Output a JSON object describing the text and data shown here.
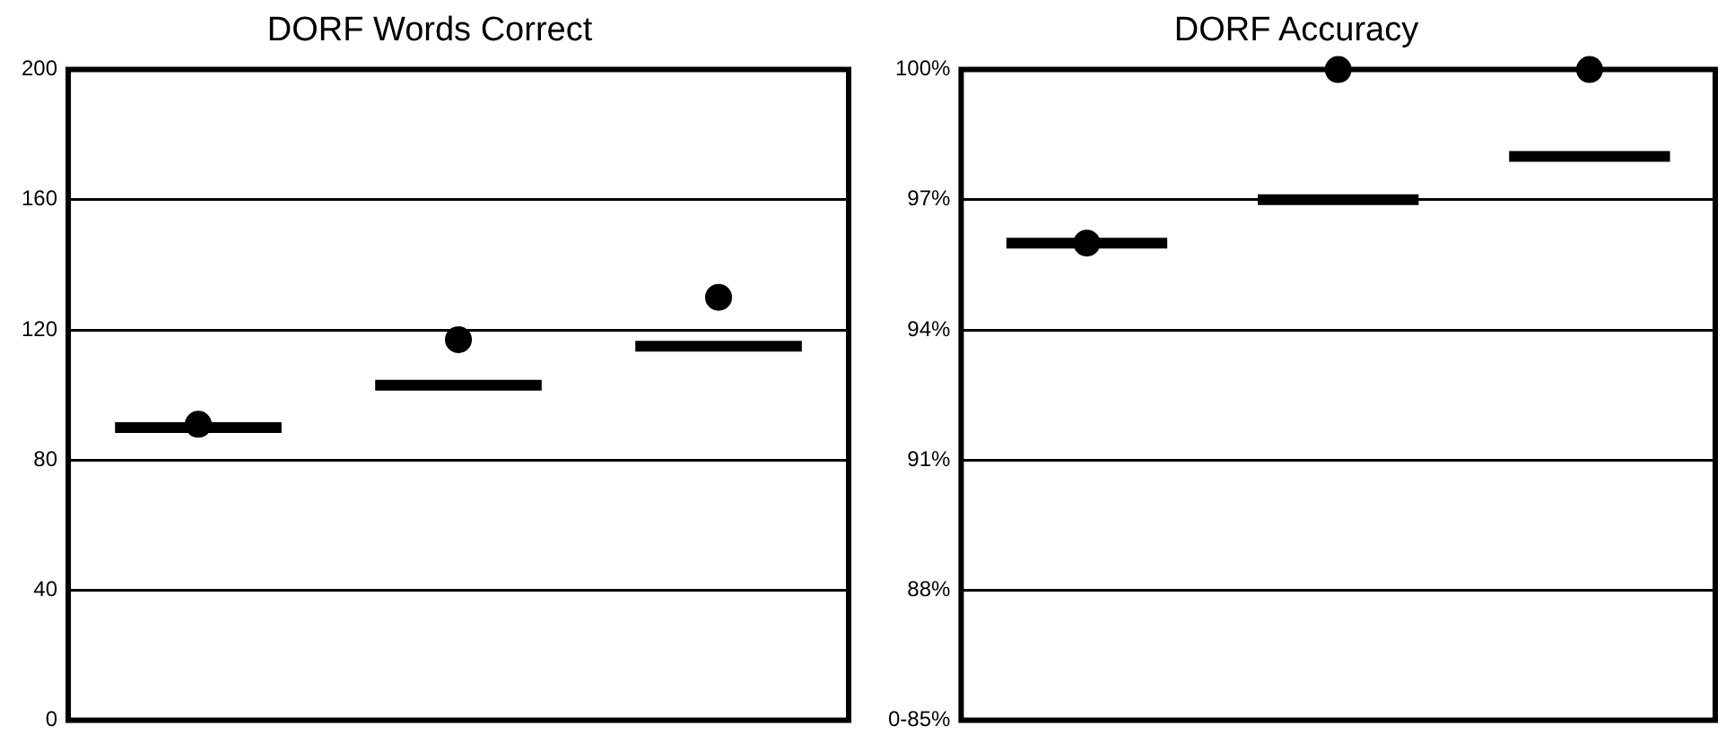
{
  "chart_data": [
    {
      "type": "box",
      "title": "DORF Words Correct",
      "categories": [
        null,
        null,
        null
      ],
      "series": [
        {
          "type": "box",
          "color": "#000000",
          "boxes": [
            {
              "low": 90,
              "q1": 90,
              "median": 90,
              "q3": 90,
              "high": 90
            },
            {
              "low": 103,
              "q1": 103,
              "median": 103,
              "q3": 103,
              "high": 103
            },
            {
              "low": 115,
              "q1": 115,
              "median": 115,
              "q3": 115,
              "high": 115
            }
          ]
        },
        {
          "type": "scatter",
          "color": "#000000",
          "marker": "circle",
          "values": [
            91,
            117,
            130
          ]
        }
      ],
      "ylim": [
        0,
        200
      ],
      "yticks": [
        0,
        40,
        80,
        120,
        160,
        200
      ],
      "grid": "y",
      "tick_labels": "y",
      "legend": false
    },
    {
      "type": "box",
      "title": "DORF Accuracy",
      "categories": [
        null,
        null,
        null
      ],
      "series": [
        {
          "type": "box",
          "color": "#000000",
          "boxes": [
            {
              "low": 96,
              "q1": 96,
              "median": 96,
              "q3": 96,
              "high": 96
            },
            {
              "low": 97,
              "q1": 97,
              "median": 97,
              "q3": 97,
              "high": 97
            },
            {
              "low": 98,
              "q1": 98,
              "median": 98,
              "q3": 98,
              "high": 98
            }
          ]
        },
        {
          "type": "scatter",
          "color": "#000000",
          "marker": "circle",
          "values": [
            96,
            100,
            100
          ]
        }
      ],
      "ylim": [
        85,
        100
      ],
      "yticks": [
        {
          "value": 85,
          "label": "0-85%"
        },
        {
          "value": 88,
          "label": "88%"
        },
        {
          "value": 91,
          "label": "91%"
        },
        {
          "value": 94,
          "label": "94%"
        },
        {
          "value": 97,
          "label": "97%"
        },
        {
          "value": 100,
          "label": "100%"
        }
      ],
      "grid": "y",
      "tick_labels": "y",
      "legend": false
    }
  ]
}
